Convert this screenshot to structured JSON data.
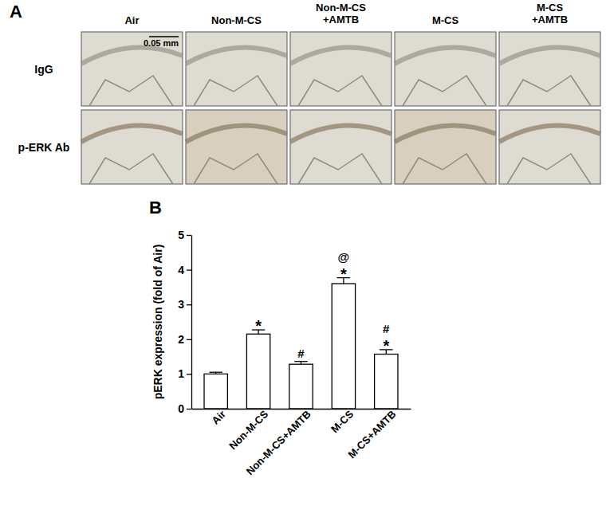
{
  "panel_a": {
    "label": "A",
    "columns": [
      "Air",
      "Non-M-CS",
      "Non-M-CS\n+AMTB",
      "M-CS",
      "M-CS\n+AMTB"
    ],
    "rows": [
      "IgG",
      "p-ERK Ab"
    ],
    "scale_bar": "0.05 mm"
  },
  "chart_data": {
    "type": "bar",
    "panel_label": "B",
    "ylabel": "pERK expression (fold of Air)",
    "categories": [
      "Air",
      "Non-M-CS",
      "Non-M-CS+AMTB",
      "M-CS",
      "M-CS+AMTB"
    ],
    "values": [
      1.0,
      2.15,
      1.28,
      3.6,
      1.57
    ],
    "errors": [
      0.05,
      0.12,
      0.08,
      0.17,
      0.13
    ],
    "annotations": [
      null,
      [
        "*"
      ],
      [
        "#"
      ],
      [
        "@",
        "*"
      ],
      [
        "#",
        "*"
      ]
    ],
    "color": "#ffffff",
    "ylim": [
      0,
      5
    ],
    "yticks": [
      0,
      1,
      2,
      3,
      4,
      5
    ],
    "grid": false
  }
}
